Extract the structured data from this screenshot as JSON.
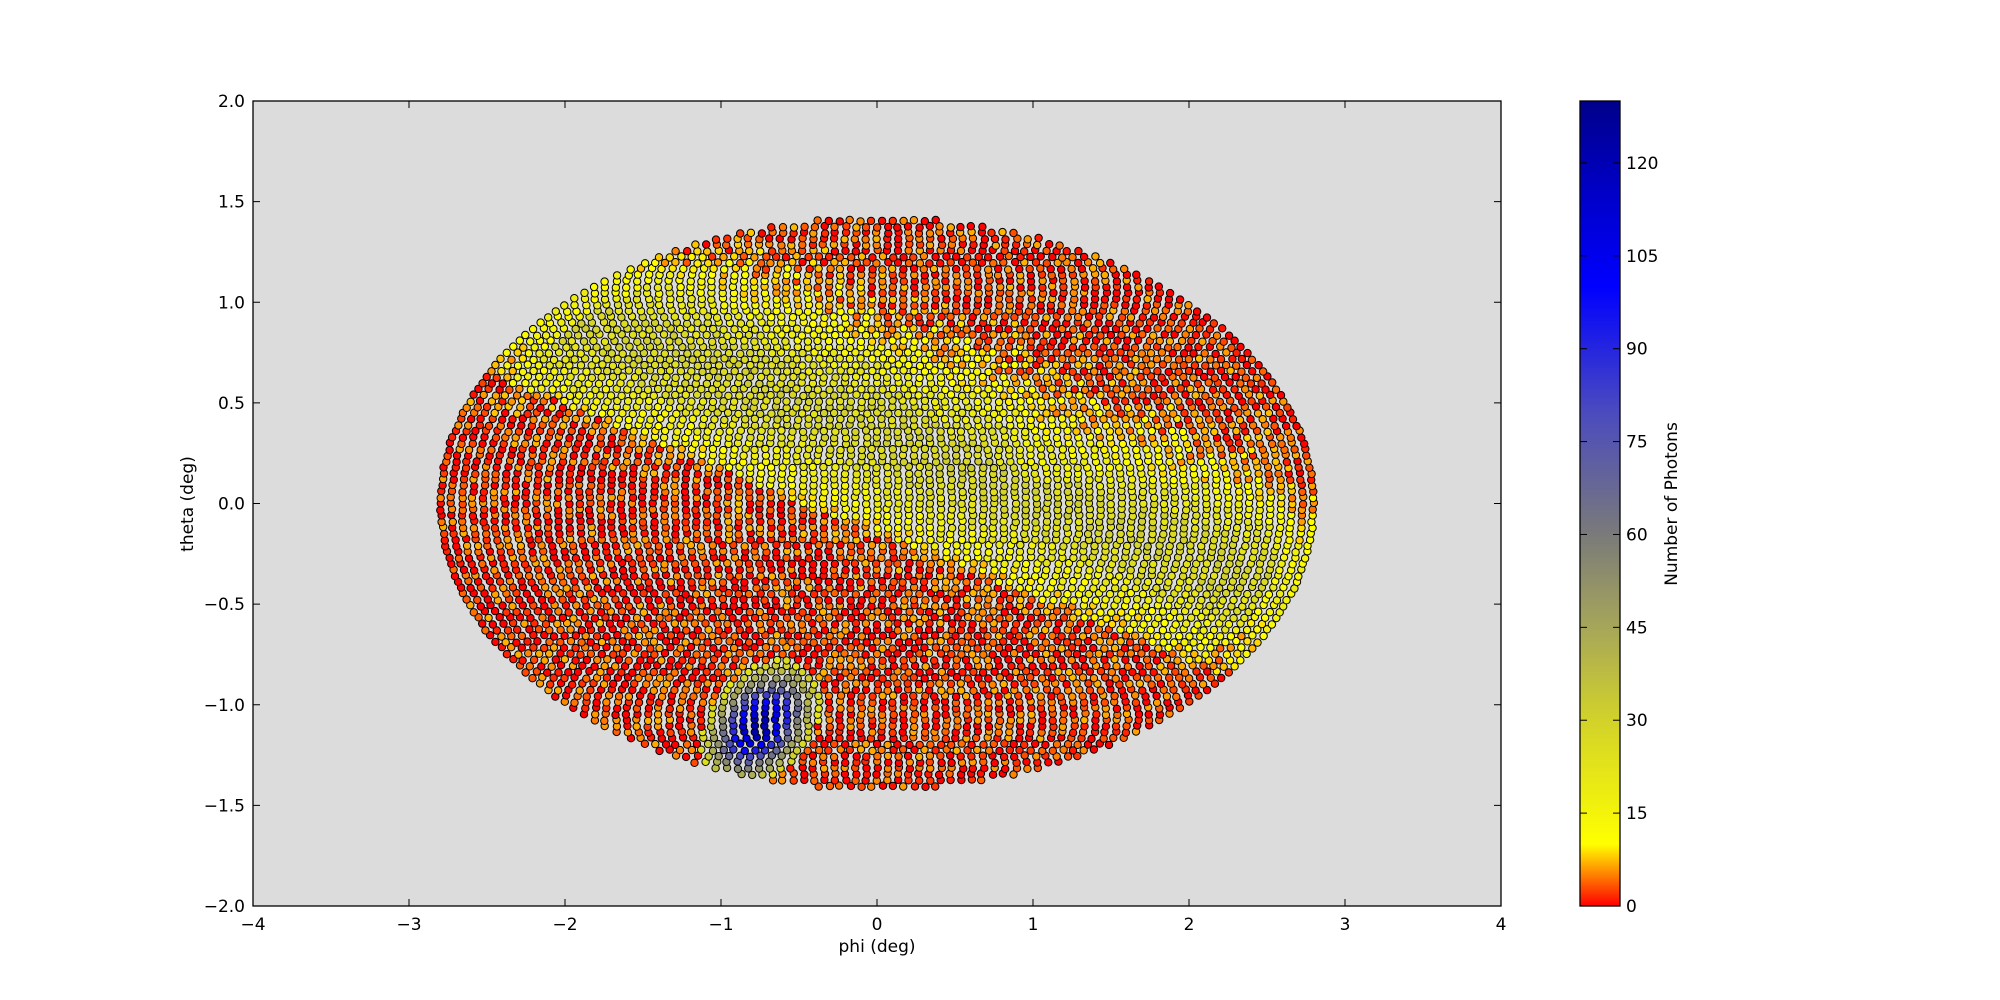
{
  "chart_data": {
    "type": "scatter",
    "title": "",
    "xlabel": "phi (deg)",
    "ylabel": "theta (deg)",
    "xlim": [
      -4,
      4
    ],
    "ylim": [
      -2,
      2
    ],
    "xticks": [
      -4,
      -3,
      -2,
      -1,
      0,
      1,
      2,
      3,
      4
    ],
    "xtick_labels": [
      "−4",
      "−3",
      "−2",
      "−1",
      "0",
      "1",
      "2",
      "3",
      "4"
    ],
    "yticks": [
      -2.0,
      -1.5,
      -1.0,
      -0.5,
      0.0,
      0.5,
      1.0,
      1.5,
      2.0
    ],
    "ytick_labels": [
      "−2.0",
      "−1.5",
      "−1.0",
      "−0.5",
      "0.0",
      "0.5",
      "1.0",
      "1.5",
      "2.0"
    ],
    "grid": false,
    "background_color": "#dcdcdc",
    "marker_edge_color": "#000000",
    "point_cloud": {
      "shape": "ellipse",
      "phi_range": [
        -2.83,
        2.83
      ],
      "theta_range": [
        -1.42,
        1.42
      ],
      "background_count_range": [
        0,
        25
      ],
      "high_count_region": {
        "phi_center": -0.75,
        "theta_center": -1.1,
        "peak_count": 125
      }
    },
    "colorbar": {
      "label": "Number of Photons",
      "min": 0,
      "max": 130,
      "ticks": [
        0,
        15,
        30,
        45,
        60,
        75,
        90,
        105,
        120
      ],
      "tick_labels": [
        "0",
        "15",
        "30",
        "45",
        "60",
        "75",
        "90",
        "105",
        "120"
      ],
      "colormap_stops": [
        {
          "value": 0,
          "color": "#ff0000"
        },
        {
          "value": 10,
          "color": "#ffff00"
        },
        {
          "value": 30,
          "color": "#d2d22a"
        },
        {
          "value": 45,
          "color": "#a6a65a"
        },
        {
          "value": 60,
          "color": "#7a7a7a"
        },
        {
          "value": 80,
          "color": "#4a4ac0"
        },
        {
          "value": 100,
          "color": "#0000ff"
        },
        {
          "value": 115,
          "color": "#0000c8"
        },
        {
          "value": 130,
          "color": "#00008b"
        }
      ]
    }
  }
}
